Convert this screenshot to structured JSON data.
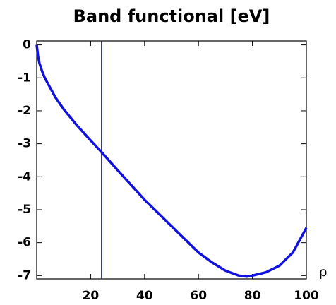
{
  "chart_data": {
    "type": "line",
    "title": "Band functional [eV]",
    "x_label": "ρ",
    "x": [
      0,
      0.5,
      1,
      2,
      3,
      5,
      7,
      10,
      15,
      20,
      24,
      30,
      35,
      40,
      45,
      50,
      55,
      60,
      65,
      70,
      75,
      78,
      80,
      85,
      90,
      95,
      100
    ],
    "series": [
      {
        "color": "#1010e0",
        "values": [
          0,
          -0.35,
          -0.55,
          -0.8,
          -1.0,
          -1.3,
          -1.6,
          -1.95,
          -2.45,
          -2.9,
          -3.25,
          -3.8,
          -4.25,
          -4.7,
          -5.1,
          -5.5,
          -5.9,
          -6.3,
          -6.6,
          -6.85,
          -7.0,
          -7.03,
          -7.0,
          -6.9,
          -6.7,
          -6.3,
          -5.55
        ]
      }
    ],
    "vline_x": 24,
    "vline_color": "#2020c0",
    "xlim": [
      0,
      100
    ],
    "ylim": [
      -7.1,
      0.12
    ],
    "xticks": [
      20,
      40,
      60,
      80,
      100
    ],
    "yticks": [
      0,
      -1,
      -2,
      -3,
      -4,
      -5,
      -6,
      -7
    ]
  }
}
